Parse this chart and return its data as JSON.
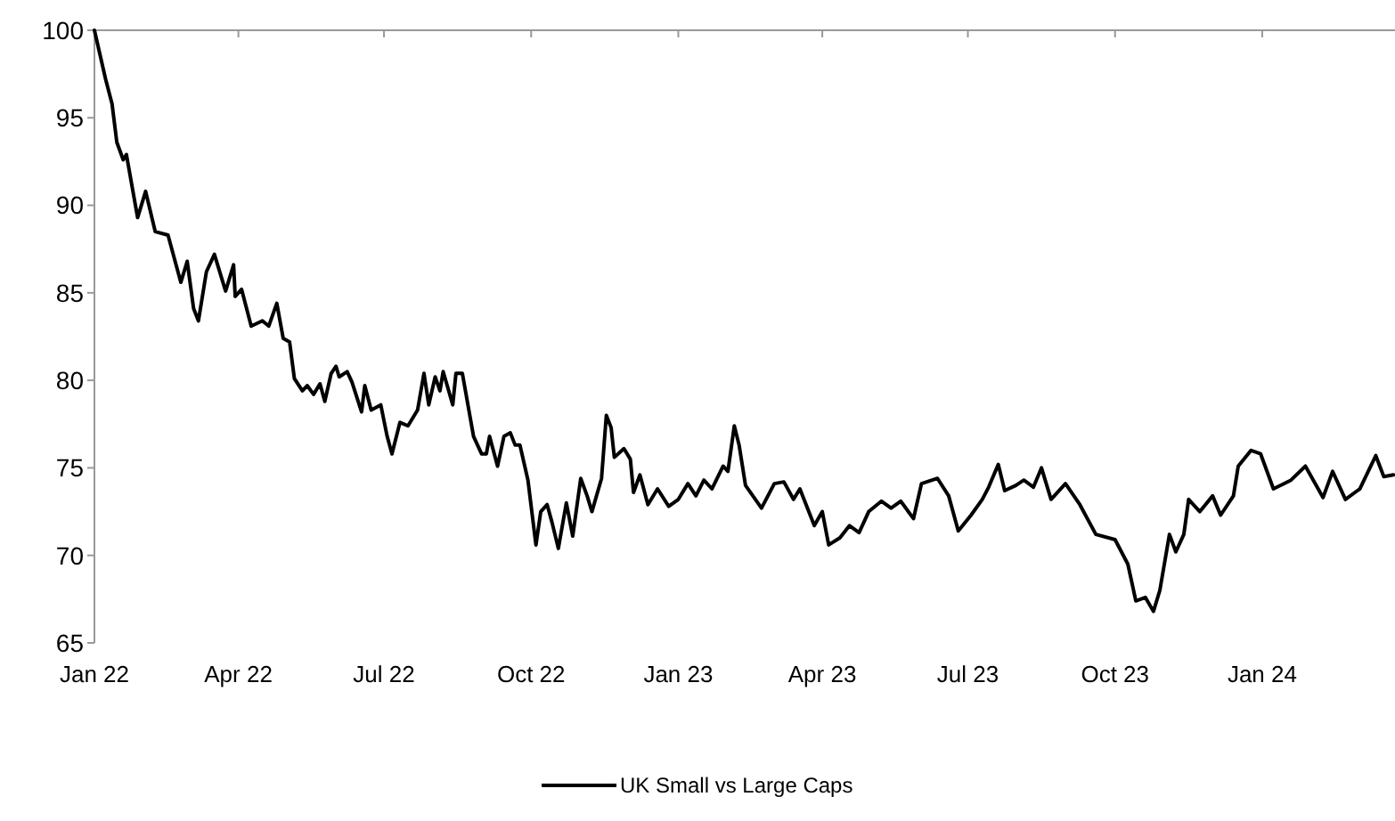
{
  "chart_data": {
    "type": "line",
    "legend": "bottom",
    "grid": false,
    "marker": "none",
    "line_style": "solid",
    "xlim": [
      "2022-01-01",
      "2024-03-24"
    ],
    "xticks": [
      {
        "value": "2022-01-01",
        "label": "Jan 22"
      },
      {
        "value": "2022-04-01",
        "label": "Apr 22"
      },
      {
        "value": "2022-07-01",
        "label": "Jul 22"
      },
      {
        "value": "2022-10-01",
        "label": "Oct 22"
      },
      {
        "value": "2023-01-01",
        "label": "Jan 23"
      },
      {
        "value": "2023-04-01",
        "label": "Apr 23"
      },
      {
        "value": "2023-07-01",
        "label": "Jul 23"
      },
      {
        "value": "2023-10-01",
        "label": "Oct 23"
      },
      {
        "value": "2024-01-01",
        "label": "Jan 24"
      }
    ],
    "ylim": [
      65,
      100
    ],
    "yticks": [
      65,
      70,
      75,
      80,
      85,
      90,
      95,
      100
    ],
    "series": [
      {
        "name": "UK Small vs Large Caps",
        "color": "#000000",
        "x": [
          "2022-01-01",
          "2022-01-08",
          "2022-01-12",
          "2022-01-15",
          "2022-01-19",
          "2022-01-21",
          "2022-01-28",
          "2022-02-02",
          "2022-02-08",
          "2022-02-16",
          "2022-02-24",
          "2022-02-28",
          "2022-03-04",
          "2022-03-07",
          "2022-03-12",
          "2022-03-17",
          "2022-03-24",
          "2022-03-29",
          "2022-03-30",
          "2022-04-03",
          "2022-04-09",
          "2022-04-16",
          "2022-04-20",
          "2022-04-25",
          "2022-04-29",
          "2022-05-03",
          "2022-05-06",
          "2022-05-11",
          "2022-05-14",
          "2022-05-18",
          "2022-05-22",
          "2022-05-25",
          "2022-05-29",
          "2022-06-01",
          "2022-06-03",
          "2022-06-08",
          "2022-06-11",
          "2022-06-17",
          "2022-06-19",
          "2022-06-23",
          "2022-06-29",
          "2022-07-03",
          "2022-07-06",
          "2022-07-11",
          "2022-07-16",
          "2022-07-22",
          "2022-07-26",
          "2022-07-29",
          "2022-08-02",
          "2022-08-05",
          "2022-08-07",
          "2022-08-13",
          "2022-08-15",
          "2022-08-19",
          "2022-08-26",
          "2022-08-31",
          "2022-09-03",
          "2022-09-05",
          "2022-09-10",
          "2022-09-14",
          "2022-09-18",
          "2022-09-21",
          "2022-09-24",
          "2022-09-29",
          "2022-10-04",
          "2022-10-07",
          "2022-10-11",
          "2022-10-14",
          "2022-10-18",
          "2022-10-23",
          "2022-10-27",
          "2022-11-01",
          "2022-11-05",
          "2022-11-08",
          "2022-11-14",
          "2022-11-17",
          "2022-11-20",
          "2022-11-22",
          "2022-11-28",
          "2022-12-02",
          "2022-12-04",
          "2022-12-08",
          "2022-12-13",
          "2022-12-19",
          "2022-12-26",
          "2023-01-01",
          "2023-01-07",
          "2023-01-12",
          "2023-01-17",
          "2023-01-22",
          "2023-01-29",
          "2023-02-01",
          "2023-02-05",
          "2023-02-08",
          "2023-02-12",
          "2023-02-22",
          "2023-03-02",
          "2023-03-08",
          "2023-03-14",
          "2023-03-18",
          "2023-03-27",
          "2023-04-01",
          "2023-04-05",
          "2023-04-12",
          "2023-04-18",
          "2023-04-24",
          "2023-04-30",
          "2023-05-08",
          "2023-05-14",
          "2023-05-20",
          "2023-05-28",
          "2023-06-02",
          "2023-06-12",
          "2023-06-19",
          "2023-06-25",
          "2023-07-03",
          "2023-07-10",
          "2023-07-14",
          "2023-07-20",
          "2023-07-24",
          "2023-07-31",
          "2023-08-05",
          "2023-08-11",
          "2023-08-16",
          "2023-08-22",
          "2023-08-31",
          "2023-09-09",
          "2023-09-19",
          "2023-10-01",
          "2023-10-09",
          "2023-10-14",
          "2023-10-20",
          "2023-10-25",
          "2023-10-29",
          "2023-11-04",
          "2023-11-08",
          "2023-11-13",
          "2023-11-16",
          "2023-11-23",
          "2023-12-01",
          "2023-12-06",
          "2023-12-14",
          "2023-12-17",
          "2023-12-25",
          "2023-12-31",
          "2024-01-08",
          "2024-01-19",
          "2024-01-28",
          "2024-02-08",
          "2024-02-14",
          "2024-02-22",
          "2024-03-02",
          "2024-03-12",
          "2024-03-17",
          "2024-03-23"
        ],
        "values": [
          100,
          97.2,
          95.8,
          93.6,
          92.6,
          92.9,
          89.3,
          90.8,
          88.5,
          88.3,
          85.6,
          86.8,
          84.1,
          83.4,
          86.2,
          87.2,
          85.1,
          86.6,
          84.8,
          85.2,
          83.1,
          83.4,
          83.1,
          84.4,
          82.4,
          82.2,
          80.1,
          79.4,
          79.7,
          79.2,
          79.8,
          78.8,
          80.4,
          80.8,
          80.2,
          80.5,
          79.9,
          78.2,
          79.7,
          78.3,
          78.6,
          76.8,
          75.8,
          77.6,
          77.4,
          78.3,
          80.4,
          78.6,
          80.2,
          79.4,
          80.5,
          78.6,
          80.4,
          80.4,
          76.8,
          75.8,
          75.8,
          76.8,
          75.1,
          76.8,
          77.0,
          76.3,
          76.3,
          74.3,
          70.6,
          72.5,
          72.9,
          71.9,
          70.4,
          73.0,
          71.1,
          74.4,
          73.4,
          72.5,
          74.4,
          78.0,
          77.3,
          75.6,
          76.1,
          75.5,
          73.6,
          74.6,
          72.9,
          73.8,
          72.8,
          73.2,
          74.1,
          73.4,
          74.3,
          73.8,
          75.1,
          74.8,
          77.4,
          76.3,
          74.0,
          72.7,
          74.1,
          74.2,
          73.2,
          73.8,
          71.7,
          72.5,
          70.6,
          71.0,
          71.7,
          71.3,
          72.5,
          73.1,
          72.7,
          73.1,
          72.1,
          74.1,
          74.4,
          73.4,
          71.4,
          72.3,
          73.2,
          73.9,
          75.2,
          73.7,
          74.0,
          74.3,
          73.9,
          75.0,
          73.2,
          74.1,
          72.9,
          71.2,
          70.9,
          69.5,
          67.4,
          67.6,
          66.8,
          68.0,
          71.2,
          70.2,
          71.2,
          73.2,
          72.5,
          73.4,
          72.3,
          73.4,
          75.1,
          76.0,
          75.8,
          73.8,
          74.3,
          75.1,
          73.3,
          74.8,
          73.2,
          73.8,
          75.7,
          74.5,
          74.6
        ]
      }
    ]
  }
}
